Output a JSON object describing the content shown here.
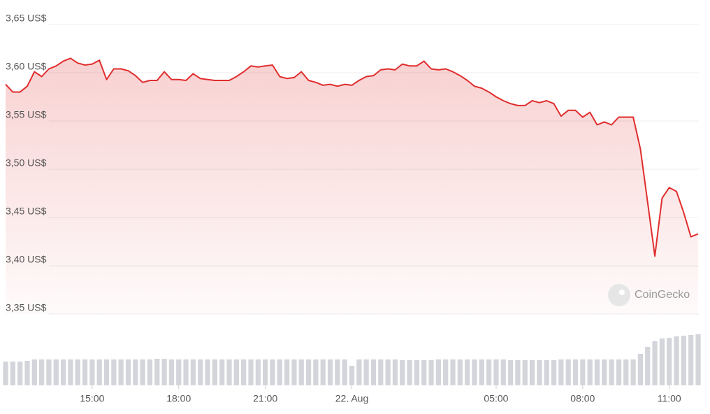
{
  "chart_data": {
    "type": "line",
    "color": "#e02d2d",
    "volume_color": "#d3d5db",
    "grid": true,
    "watermark": "CoinGecko",
    "xlim": [
      12,
      36
    ],
    "ylim": [
      3.35,
      3.65
    ],
    "yticks": [
      {
        "value": 3.35,
        "label": "3,35 US$"
      },
      {
        "value": 3.4,
        "label": "3,40 US$"
      },
      {
        "value": 3.45,
        "label": "3,45 US$"
      },
      {
        "value": 3.5,
        "label": "3,50 US$"
      },
      {
        "value": 3.55,
        "label": "3,55 US$"
      },
      {
        "value": 3.6,
        "label": "3,60 US$"
      },
      {
        "value": 3.65,
        "label": "3,65 US$"
      }
    ],
    "xticks": [
      {
        "value": 15,
        "label": "15:00"
      },
      {
        "value": 18,
        "label": "18:00"
      },
      {
        "value": 21,
        "label": "21:00"
      },
      {
        "value": 24,
        "label": "22. Aug"
      },
      {
        "value": 29,
        "label": "05:00"
      },
      {
        "value": 32,
        "label": "08:00"
      },
      {
        "value": 35,
        "label": "11:00"
      }
    ],
    "x": [
      12,
      12.25,
      12.5,
      12.75,
      13,
      13.25,
      13.5,
      13.75,
      14,
      14.25,
      14.5,
      14.75,
      15,
      15.25,
      15.5,
      15.75,
      16,
      16.25,
      16.5,
      16.75,
      17,
      17.25,
      17.5,
      17.75,
      18,
      18.25,
      18.5,
      18.75,
      19,
      19.25,
      19.5,
      19.75,
      20,
      20.25,
      20.5,
      20.75,
      21,
      21.25,
      21.5,
      21.75,
      22,
      22.25,
      22.5,
      22.75,
      23,
      23.25,
      23.5,
      23.75,
      24,
      24.25,
      24.5,
      24.75,
      25,
      25.25,
      25.5,
      25.75,
      26,
      26.25,
      26.5,
      26.75,
      27,
      27.25,
      27.5,
      27.75,
      28,
      28.25,
      28.5,
      28.75,
      29,
      29.25,
      29.5,
      29.75,
      30,
      30.25,
      30.5,
      30.75,
      31,
      31.25,
      31.5,
      31.75,
      32,
      32.25,
      32.5,
      32.75,
      33,
      33.25,
      33.5,
      33.75,
      34,
      34.25,
      34.5,
      34.75,
      35,
      35.25,
      35.5,
      35.75,
      36
    ],
    "values": [
      3.588,
      3.58,
      3.58,
      3.586,
      3.601,
      3.596,
      3.604,
      3.607,
      3.612,
      3.615,
      3.61,
      3.608,
      3.609,
      3.613,
      3.593,
      3.604,
      3.604,
      3.602,
      3.597,
      3.59,
      3.592,
      3.592,
      3.601,
      3.593,
      3.593,
      3.592,
      3.599,
      3.594,
      3.593,
      3.592,
      3.592,
      3.592,
      3.596,
      3.601,
      3.607,
      3.606,
      3.607,
      3.608,
      3.596,
      3.594,
      3.595,
      3.601,
      3.592,
      3.59,
      3.587,
      3.588,
      3.586,
      3.588,
      3.587,
      3.592,
      3.596,
      3.597,
      3.603,
      3.604,
      3.603,
      3.609,
      3.607,
      3.607,
      3.612,
      3.604,
      3.603,
      3.604,
      3.601,
      3.597,
      3.592,
      3.586,
      3.584,
      3.58,
      3.575,
      3.571,
      3.568,
      3.566,
      3.566,
      3.571,
      3.569,
      3.571,
      3.568,
      3.555,
      3.561,
      3.561,
      3.554,
      3.559,
      3.546,
      3.549,
      3.546,
      3.554,
      3.554,
      3.554,
      3.521,
      3.466,
      3.41,
      3.47,
      3.481,
      3.477,
      3.455,
      3.43,
      3.433
    ],
    "volume": [
      34,
      34,
      34,
      35,
      37,
      37,
      37,
      37,
      37,
      37,
      37,
      37,
      37,
      37,
      37,
      37,
      37,
      37,
      37,
      37,
      37,
      38,
      38,
      37,
      37,
      37,
      37,
      37,
      37,
      37,
      37,
      37,
      37,
      37,
      37,
      37,
      37,
      37,
      37,
      37,
      37,
      37,
      37,
      37,
      37,
      37,
      37,
      37,
      28,
      37,
      37,
      37,
      37,
      37,
      37,
      36,
      36,
      36,
      36,
      36,
      37,
      37,
      37,
      37,
      37,
      37,
      37,
      37,
      37,
      37,
      36,
      36,
      36,
      36,
      36,
      36,
      36,
      37,
      37,
      37,
      37,
      37,
      37,
      37,
      37,
      37,
      37,
      37,
      45,
      55,
      63,
      67,
      68,
      70,
      71,
      72,
      73
    ]
  }
}
